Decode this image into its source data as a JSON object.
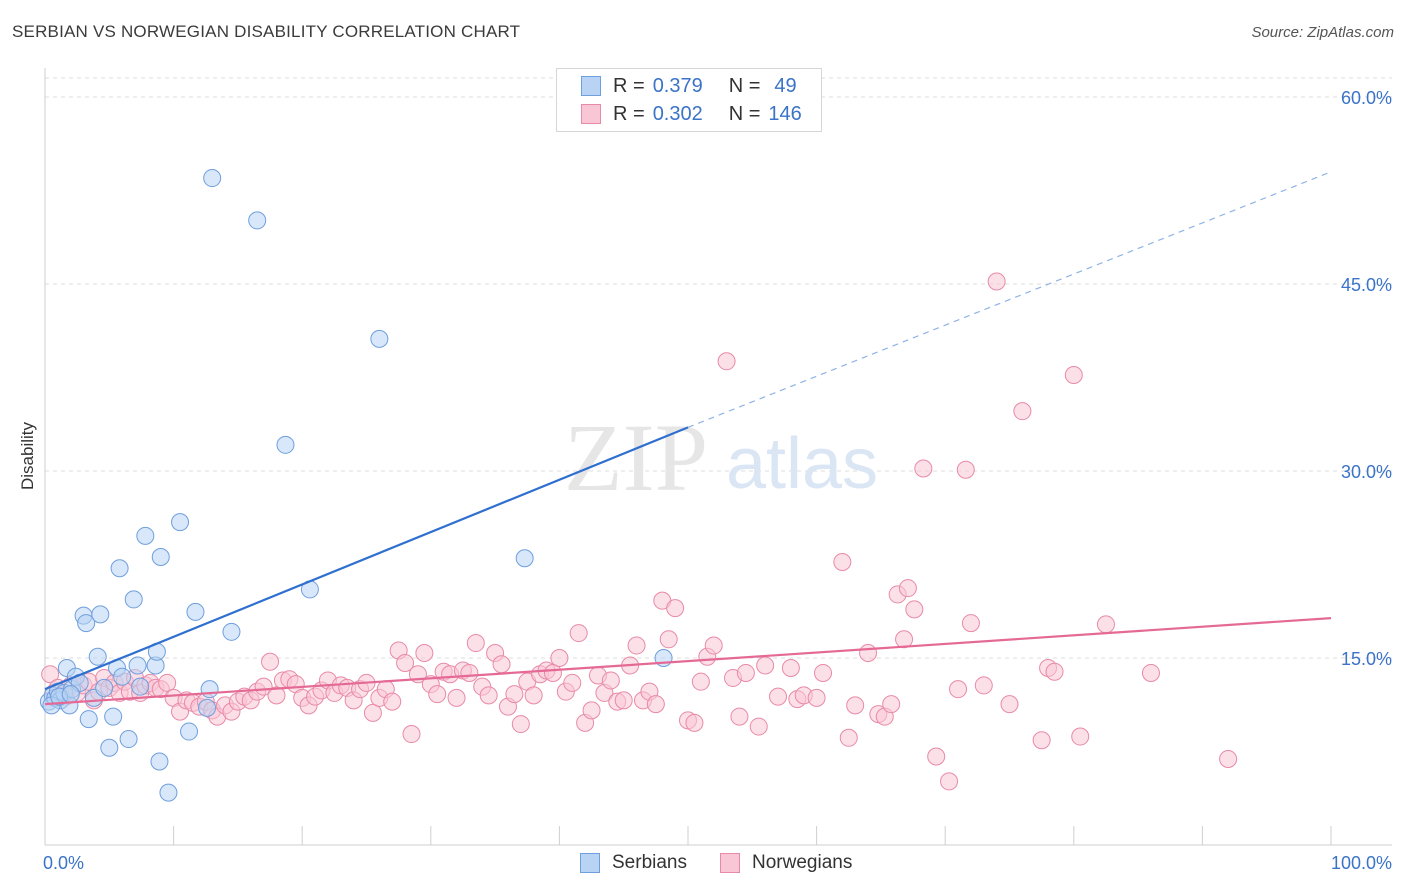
{
  "header": {
    "title": "SERBIAN VS NORWEGIAN DISABILITY CORRELATION CHART",
    "source": "Source: ZipAtlas.com"
  },
  "legend": {
    "rows": [
      {
        "r_label": "R =",
        "r_value": "0.379",
        "n_label": "N =",
        "n_value": "49",
        "color": "#a9c8f0"
      },
      {
        "r_label": "R =",
        "r_value": "0.302",
        "n_label": "N =",
        "n_value": "146",
        "color": "#f6b8cb"
      }
    ],
    "bottom": [
      {
        "label": "Serbians",
        "color": "#a9c8f0"
      },
      {
        "label": "Norwegians",
        "color": "#f6b8cb"
      }
    ]
  },
  "watermark": {
    "zip": "ZIP",
    "atlas": "atlas"
  },
  "colors": {
    "serbian_fill": "#b8d3f4",
    "serbian_stroke": "#6f9fdc",
    "serbian_line": "#2f6fcf",
    "norwegian_fill": "#f9c6d6",
    "norwegian_stroke": "#e88aa8",
    "norwegian_line": "#e46a95",
    "axis_text": "#3a73c8"
  },
  "chart_data": {
    "type": "scatter",
    "title": "SERBIAN VS NORWEGIAN DISABILITY CORRELATION CHART",
    "xlabel": "",
    "ylabel": "Disability",
    "xlim": [
      0,
      100
    ],
    "ylim": [
      0,
      60
    ],
    "x_tick_labels": [
      "0.0%",
      "100.0%"
    ],
    "y_ticks": [
      15,
      30,
      45,
      60
    ],
    "y_tick_labels": [
      "15.0%",
      "30.0%",
      "45.0%",
      "60.0%"
    ],
    "grid": true,
    "series": [
      {
        "name": "Serbians",
        "r": 0.379,
        "n": 49,
        "trend": {
          "x0": 0,
          "y0": 12.5,
          "x1": 50,
          "y1": 33.5,
          "dashed_to_x": 100,
          "dashed_to_y": 54.0
        },
        "points": [
          [
            0.3,
            11.5
          ],
          [
            0.6,
            12.0
          ],
          [
            0.8,
            11.8
          ],
          [
            1.0,
            12.3
          ],
          [
            1.2,
            11.6
          ],
          [
            1.5,
            12.2
          ],
          [
            1.7,
            14.2
          ],
          [
            1.9,
            11.2
          ],
          [
            2.1,
            12.5
          ],
          [
            2.4,
            13.5
          ],
          [
            2.7,
            13.0
          ],
          [
            3.0,
            18.4
          ],
          [
            3.2,
            17.8
          ],
          [
            3.4,
            10.1
          ],
          [
            3.8,
            11.8
          ],
          [
            4.1,
            15.1
          ],
          [
            4.3,
            18.5
          ],
          [
            4.6,
            12.6
          ],
          [
            5.0,
            7.8
          ],
          [
            5.3,
            10.3
          ],
          [
            5.6,
            14.2
          ],
          [
            5.8,
            22.2
          ],
          [
            6.0,
            13.5
          ],
          [
            6.5,
            8.5
          ],
          [
            6.9,
            19.7
          ],
          [
            7.2,
            14.4
          ],
          [
            7.4,
            12.7
          ],
          [
            7.8,
            24.8
          ],
          [
            8.6,
            14.4
          ],
          [
            8.7,
            15.5
          ],
          [
            8.9,
            6.7
          ],
          [
            9.0,
            23.1
          ],
          [
            9.6,
            4.2
          ],
          [
            10.5,
            25.9
          ],
          [
            11.2,
            9.1
          ],
          [
            11.7,
            18.7
          ],
          [
            12.6,
            11.0
          ],
          [
            12.8,
            12.5
          ],
          [
            13.0,
            53.5
          ],
          [
            14.5,
            17.1
          ],
          [
            16.5,
            50.1
          ],
          [
            18.7,
            32.1
          ],
          [
            20.6,
            20.5
          ],
          [
            26.0,
            40.6
          ],
          [
            37.3,
            23.0
          ],
          [
            48.1,
            15.0
          ],
          [
            0.5,
            11.2
          ],
          [
            1.1,
            11.9
          ],
          [
            2.0,
            12.1
          ]
        ]
      },
      {
        "name": "Norwegians",
        "r": 0.302,
        "n": 146,
        "trend": {
          "x0": 0,
          "y0": 11.3,
          "x1": 100,
          "y1": 18.2
        },
        "points": [
          [
            0.4,
            13.7
          ],
          [
            0.7,
            12.2
          ],
          [
            1.0,
            12.6
          ],
          [
            1.3,
            12.0
          ],
          [
            1.6,
            11.9
          ],
          [
            2.0,
            12.8
          ],
          [
            2.5,
            12.2
          ],
          [
            3.0,
            12.8
          ],
          [
            3.4,
            13.1
          ],
          [
            3.8,
            11.6
          ],
          [
            4.2,
            12.3
          ],
          [
            4.6,
            13.4
          ],
          [
            5.0,
            12.6
          ],
          [
            5.4,
            13.0
          ],
          [
            5.8,
            12.2
          ],
          [
            6.2,
            13.1
          ],
          [
            6.6,
            12.3
          ],
          [
            7.0,
            13.4
          ],
          [
            7.4,
            12.2
          ],
          [
            7.8,
            12.8
          ],
          [
            8.2,
            13.0
          ],
          [
            8.6,
            12.6
          ],
          [
            9.0,
            12.5
          ],
          [
            9.5,
            13.0
          ],
          [
            10.0,
            11.8
          ],
          [
            10.5,
            10.7
          ],
          [
            11.0,
            11.6
          ],
          [
            11.5,
            11.4
          ],
          [
            12.0,
            11.1
          ],
          [
            12.5,
            11.5
          ],
          [
            13.0,
            10.8
          ],
          [
            13.4,
            10.3
          ],
          [
            14.0,
            11.2
          ],
          [
            14.5,
            10.7
          ],
          [
            15.0,
            11.5
          ],
          [
            15.5,
            11.9
          ],
          [
            16.0,
            11.6
          ],
          [
            16.5,
            12.3
          ],
          [
            17.0,
            12.7
          ],
          [
            17.5,
            14.7
          ],
          [
            18.0,
            12.0
          ],
          [
            18.5,
            13.2
          ],
          [
            19.0,
            13.3
          ],
          [
            19.5,
            12.9
          ],
          [
            20.0,
            11.8
          ],
          [
            20.5,
            11.2
          ],
          [
            21.0,
            11.9
          ],
          [
            21.5,
            12.4
          ],
          [
            22.0,
            13.2
          ],
          [
            22.5,
            12.2
          ],
          [
            23.0,
            12.8
          ],
          [
            23.5,
            12.6
          ],
          [
            24.0,
            11.6
          ],
          [
            24.5,
            12.5
          ],
          [
            25.0,
            13.0
          ],
          [
            25.5,
            10.6
          ],
          [
            26.0,
            11.8
          ],
          [
            26.5,
            12.5
          ],
          [
            27.0,
            11.5
          ],
          [
            27.5,
            15.6
          ],
          [
            28.0,
            14.6
          ],
          [
            28.5,
            8.9
          ],
          [
            29.0,
            13.7
          ],
          [
            29.5,
            15.4
          ],
          [
            30.0,
            12.9
          ],
          [
            30.5,
            12.1
          ],
          [
            31.0,
            13.9
          ],
          [
            31.5,
            13.7
          ],
          [
            32.0,
            11.8
          ],
          [
            32.5,
            14.0
          ],
          [
            33.0,
            13.8
          ],
          [
            33.5,
            16.2
          ],
          [
            34.0,
            12.7
          ],
          [
            34.5,
            12.0
          ],
          [
            35.0,
            15.4
          ],
          [
            35.5,
            14.5
          ],
          [
            36.0,
            11.1
          ],
          [
            36.5,
            12.1
          ],
          [
            37.0,
            9.7
          ],
          [
            37.5,
            13.1
          ],
          [
            38.0,
            12.0
          ],
          [
            38.5,
            13.7
          ],
          [
            39.0,
            14.0
          ],
          [
            39.5,
            13.8
          ],
          [
            40.0,
            15.0
          ],
          [
            40.5,
            12.3
          ],
          [
            41.0,
            13.0
          ],
          [
            41.5,
            17.0
          ],
          [
            42.0,
            9.8
          ],
          [
            42.5,
            10.8
          ],
          [
            43.0,
            13.6
          ],
          [
            43.5,
            12.2
          ],
          [
            44.0,
            13.2
          ],
          [
            44.5,
            11.5
          ],
          [
            45.0,
            11.6
          ],
          [
            45.5,
            14.4
          ],
          [
            46.0,
            16.0
          ],
          [
            46.5,
            11.6
          ],
          [
            47.0,
            12.3
          ],
          [
            47.5,
            11.3
          ],
          [
            48.0,
            19.6
          ],
          [
            48.5,
            16.5
          ],
          [
            49.0,
            19.0
          ],
          [
            50.0,
            10.0
          ],
          [
            50.5,
            9.8
          ],
          [
            51.0,
            13.1
          ],
          [
            51.5,
            15.1
          ],
          [
            52.0,
            16.0
          ],
          [
            53.0,
            38.8
          ],
          [
            53.5,
            13.4
          ],
          [
            54.0,
            10.3
          ],
          [
            54.5,
            13.8
          ],
          [
            55.5,
            9.5
          ],
          [
            56.0,
            14.4
          ],
          [
            57.0,
            11.9
          ],
          [
            58.0,
            14.2
          ],
          [
            58.5,
            11.7
          ],
          [
            59.0,
            12.0
          ],
          [
            60.0,
            11.8
          ],
          [
            60.5,
            13.8
          ],
          [
            62.0,
            22.7
          ],
          [
            62.5,
            8.6
          ],
          [
            63.0,
            11.2
          ],
          [
            64.0,
            15.4
          ],
          [
            64.8,
            10.5
          ],
          [
            65.3,
            10.3
          ],
          [
            65.8,
            11.3
          ],
          [
            66.3,
            20.1
          ],
          [
            66.8,
            16.5
          ],
          [
            67.1,
            20.6
          ],
          [
            67.6,
            18.9
          ],
          [
            68.3,
            30.2
          ],
          [
            69.3,
            7.1
          ],
          [
            70.3,
            5.1
          ],
          [
            71.0,
            12.5
          ],
          [
            71.6,
            30.1
          ],
          [
            72.0,
            17.8
          ],
          [
            73.0,
            12.8
          ],
          [
            74.0,
            45.2
          ],
          [
            75.0,
            11.3
          ],
          [
            76.0,
            34.8
          ],
          [
            77.5,
            8.4
          ],
          [
            78.0,
            14.2
          ],
          [
            78.5,
            13.9
          ],
          [
            80.0,
            37.7
          ],
          [
            80.5,
            8.7
          ],
          [
            82.5,
            17.7
          ],
          [
            86.0,
            13.8
          ],
          [
            92.0,
            6.9
          ]
        ]
      }
    ]
  }
}
